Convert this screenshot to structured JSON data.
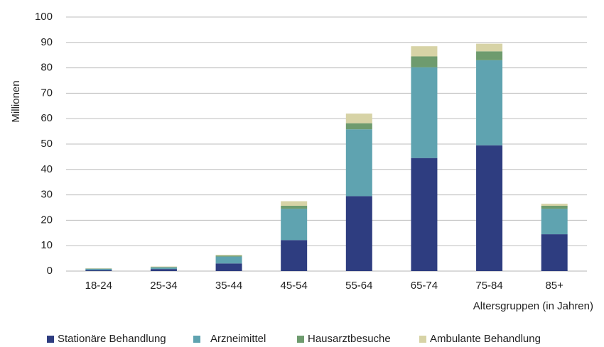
{
  "chart_data": {
    "type": "bar",
    "stacked": true,
    "categories": [
      "18-24",
      "25-34",
      "35-44",
      "45-54",
      "55-64",
      "65-74",
      "75-84",
      "85+"
    ],
    "series": [
      {
        "name": "Stationäre Behandlung",
        "color": "#2e3d80",
        "values": [
          0.4,
          0.8,
          3.0,
          12.2,
          29.5,
          44.5,
          49.5,
          14.5
        ]
      },
      {
        "name": "Arzneimittel",
        "color": "#5fa3b0",
        "values": [
          0.5,
          0.6,
          2.7,
          12.3,
          26.3,
          35.7,
          33.5,
          10.0
        ]
      },
      {
        "name": "Hausarztbesuche",
        "color": "#6e9b6e",
        "values": [
          0.1,
          0.2,
          0.4,
          1.2,
          2.4,
          4.3,
          3.5,
          1.2
        ]
      },
      {
        "name": "Ambulante Behandlung",
        "color": "#d7d3a6",
        "values": [
          0.1,
          0.2,
          0.3,
          1.8,
          3.8,
          4.0,
          3.0,
          0.8
        ]
      }
    ],
    "xlabel": "Altersgruppen (in Jahren)",
    "ylabel": "Millionen",
    "ylim": [
      0,
      100
    ],
    "yticks": [
      0,
      10,
      20,
      30,
      40,
      50,
      60,
      70,
      80,
      90,
      100
    ],
    "grid": true,
    "legend_position": "bottom"
  }
}
